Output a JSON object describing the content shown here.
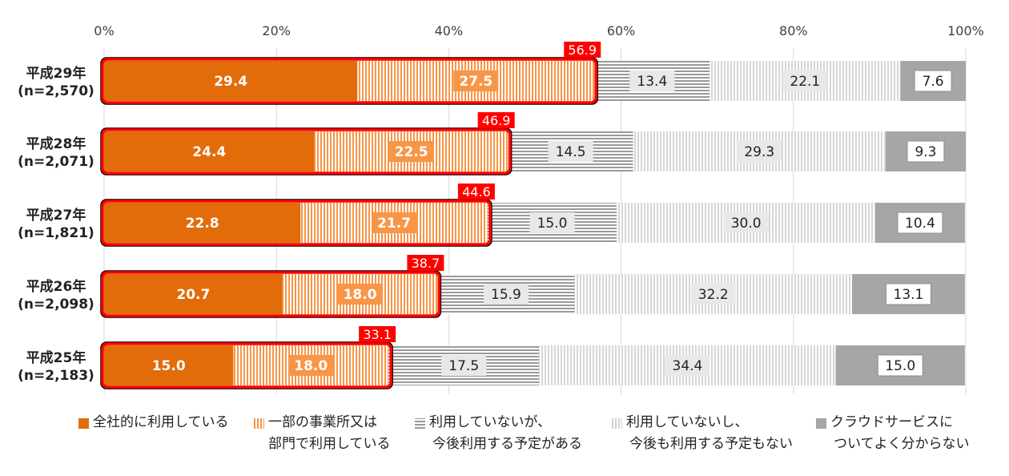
{
  "chart_data": {
    "type": "bar",
    "orientation": "horizontal",
    "stacked": true,
    "percent": true,
    "xlim": [
      0,
      100
    ],
    "x_ticks": [
      "0%",
      "20%",
      "40%",
      "60%",
      "80%",
      "100%"
    ],
    "categories": [
      {
        "year": "平成29年",
        "n": "(n=2,570)"
      },
      {
        "year": "平成28年",
        "n": "(n=2,071)"
      },
      {
        "year": "平成27年",
        "n": "(n=1,821)"
      },
      {
        "year": "平成26年",
        "n": "(n=2,098)"
      },
      {
        "year": "平成25年",
        "n": "(n=2,183)"
      }
    ],
    "series": [
      {
        "name": "全社的に利用している",
        "legend_lines": [
          "全社的に利用している"
        ],
        "color": "#E26B0A",
        "pattern": "solid",
        "values": [
          29.4,
          24.4,
          22.8,
          20.7,
          15.0
        ],
        "labels": [
          "29.4",
          "24.4",
          "22.8",
          "20.7",
          "15.0"
        ]
      },
      {
        "name": "一部の事業所又は部門で利用している",
        "legend_lines": [
          "一部の事業所又は",
          "部門で利用している"
        ],
        "color": "#F79646",
        "pattern": "vertical-stripes",
        "values": [
          27.5,
          22.5,
          21.7,
          18.0,
          18.0
        ],
        "labels": [
          "27.5",
          "22.5",
          "21.7",
          "18.0",
          "18.0"
        ]
      },
      {
        "name": "利用していないが、今後利用する予定がある",
        "legend_lines": [
          "利用していないが、",
          "今後利用する予定がある"
        ],
        "color": "#9A9A9A",
        "pattern": "horizontal-stripes",
        "values": [
          13.4,
          14.5,
          15.0,
          15.9,
          17.5
        ],
        "labels": [
          "13.4",
          "14.5",
          "15.0",
          "15.9",
          "17.5"
        ]
      },
      {
        "name": "利用していないし、今後も利用する予定もない",
        "legend_lines": [
          "利用していないし、",
          "今後も利用する予定もない"
        ],
        "color": "#D0D0D0",
        "pattern": "vertical-stripes-light",
        "values": [
          22.1,
          29.3,
          30.0,
          32.2,
          34.4
        ],
        "labels": [
          "22.1",
          "29.3",
          "30.0",
          "32.2",
          "34.4"
        ]
      },
      {
        "name": "クラウドサービスについてよく分からない",
        "legend_lines": [
          "クラウドサービスに",
          "ついてよく分からない"
        ],
        "color": "#A6A6A6",
        "pattern": "solid",
        "values": [
          7.6,
          9.3,
          10.4,
          13.1,
          15.0
        ],
        "labels": [
          "7.6",
          "9.3",
          "10.4",
          "13.1",
          "15.0"
        ]
      }
    ],
    "totals_highlighted": {
      "description_series": [
        0,
        1
      ],
      "values": [
        56.9,
        46.9,
        44.6,
        38.7,
        33.1
      ],
      "labels": [
        "56.9",
        "46.9",
        "44.6",
        "38.7",
        "33.1"
      ],
      "color": "#FF0000"
    }
  }
}
